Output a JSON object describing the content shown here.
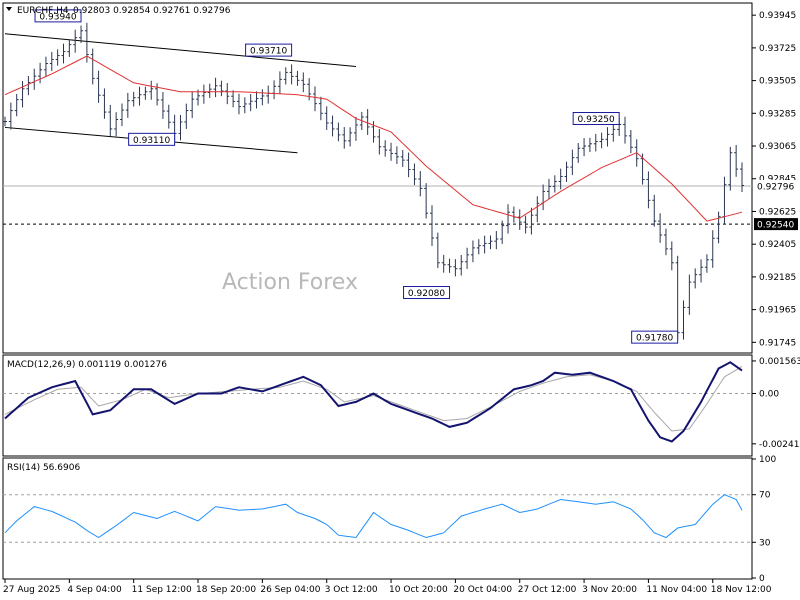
{
  "header": {
    "symbol": "EURCHF,H4",
    "ohlc": "0.92803 0.92854 0.92761 0.92796"
  },
  "watermark": "Action Forex",
  "colors": {
    "price": "#2a3550",
    "ma": "#e03030",
    "macd": "#141470",
    "signal": "#a8a8a8",
    "rsi": "#1e90ff",
    "trendline": "#000000",
    "label_border": "#1a1aa0"
  },
  "chart_data": [
    {
      "type": "line",
      "name": "price",
      "ylim": [
        0.9168,
        0.9402
      ],
      "y_ticks": [
        "0.93945",
        "0.93725",
        "0.93505",
        "0.93285",
        "0.93065",
        "0.92845",
        "0.92625",
        "0.92405",
        "0.92185",
        "0.91965",
        "0.91745"
      ],
      "y_tick_values": [
        0.93945,
        0.93725,
        0.93505,
        0.93285,
        0.93065,
        0.92845,
        0.92625,
        0.92405,
        0.92185,
        0.91965,
        0.91745
      ],
      "x_labels": [
        "27 Aug 2025",
        "4 Sep 04:00",
        "11 Sep 12:00",
        "18 Sep 20:00",
        "26 Sep 04:00",
        "3 Oct 12:00",
        "10 Oct 20:00",
        "20 Oct 04:00",
        "27 Oct 12:00",
        "3 Nov 20:00",
        "11 Nov 04:00",
        "18 Nov 12:00"
      ],
      "x_label_index": [
        0,
        11,
        22,
        33,
        44,
        55,
        66,
        77,
        88,
        99,
        110,
        121
      ],
      "x_count": 127,
      "close_anchors": [
        [
          0,
          0.9323
        ],
        [
          3,
          0.9345
        ],
        [
          7,
          0.9362
        ],
        [
          10,
          0.937
        ],
        [
          13,
          0.9384
        ],
        [
          15,
          0.9352
        ],
        [
          18,
          0.9318
        ],
        [
          21,
          0.9337
        ],
        [
          25,
          0.9345
        ],
        [
          29,
          0.9315
        ],
        [
          32,
          0.9338
        ],
        [
          36,
          0.9347
        ],
        [
          40,
          0.9333
        ],
        [
          45,
          0.9342
        ],
        [
          48,
          0.9356
        ],
        [
          51,
          0.9348
        ],
        [
          55,
          0.9322
        ],
        [
          58,
          0.931
        ],
        [
          61,
          0.9326
        ],
        [
          64,
          0.9306
        ],
        [
          68,
          0.9297
        ],
        [
          71,
          0.9278
        ],
        [
          74,
          0.9228
        ],
        [
          77,
          0.9224
        ],
        [
          80,
          0.9238
        ],
        [
          84,
          0.9244
        ],
        [
          86,
          0.9262
        ],
        [
          89,
          0.9252
        ],
        [
          92,
          0.9276
        ],
        [
          95,
          0.9286
        ],
        [
          98,
          0.9305
        ],
        [
          102,
          0.9311
        ],
        [
          105,
          0.9321
        ],
        [
          108,
          0.9298
        ],
        [
          111,
          0.9256
        ],
        [
          114,
          0.9228
        ],
        [
          115,
          0.9181
        ],
        [
          117,
          0.9215
        ],
        [
          120,
          0.923
        ],
        [
          122,
          0.9259
        ],
        [
          124,
          0.9302
        ],
        [
          126,
          0.928
        ]
      ],
      "ma_anchors": [
        [
          0,
          0.9341
        ],
        [
          8,
          0.9355
        ],
        [
          14,
          0.9367
        ],
        [
          22,
          0.9349
        ],
        [
          30,
          0.9343
        ],
        [
          40,
          0.9343
        ],
        [
          50,
          0.9341
        ],
        [
          55,
          0.9338
        ],
        [
          60,
          0.9325
        ],
        [
          66,
          0.9316
        ],
        [
          72,
          0.9293
        ],
        [
          80,
          0.9267
        ],
        [
          88,
          0.9258
        ],
        [
          95,
          0.9276
        ],
        [
          102,
          0.9292
        ],
        [
          108,
          0.9302
        ],
        [
          114,
          0.9281
        ],
        [
          120,
          0.9256
        ],
        [
          126,
          0.9262
        ]
      ],
      "last_price": 0.92796,
      "current_price_label": "0.92796",
      "level_label": "0.92540",
      "level_value": 0.9254,
      "annotations": [
        {
          "label": "0.93940",
          "index": 13,
          "value": 0.9394,
          "side": "left"
        },
        {
          "label": "0.93710",
          "index": 49,
          "value": 0.9371,
          "side": "left"
        },
        {
          "label": "0.93110",
          "index": 29,
          "value": 0.9311,
          "side": "left"
        },
        {
          "label": "0.93250",
          "index": 105,
          "value": 0.9325,
          "side": "left"
        },
        {
          "label": "0.92080",
          "index": 76,
          "value": 0.9208,
          "side": "left"
        },
        {
          "label": "0.91780",
          "index": 115,
          "value": 0.9178,
          "side": "left"
        }
      ],
      "trendlines": [
        {
          "from": [
            0,
            0.9382
          ],
          "to": [
            60,
            0.936
          ]
        },
        {
          "from": [
            0,
            0.9319
          ],
          "to": [
            50,
            0.9302
          ]
        }
      ]
    },
    {
      "type": "line",
      "name": "MACD",
      "label": "MACD(12,26,9) 0.001119 0.001276",
      "ylim": [
        -0.00295,
        0.0018
      ],
      "y_ticks": [
        "0.001563",
        "0.00",
        "-0.002413"
      ],
      "y_tick_values": [
        0.001563,
        0.0,
        -0.002413
      ],
      "macd_anchors": [
        [
          0,
          -0.0012
        ],
        [
          4,
          -0.0002
        ],
        [
          8,
          0.0003
        ],
        [
          12,
          0.0006
        ],
        [
          15,
          -0.001
        ],
        [
          18,
          -0.0008
        ],
        [
          22,
          0.0002
        ],
        [
          25,
          0.0002
        ],
        [
          29,
          -0.0005
        ],
        [
          33,
          0.0
        ],
        [
          37,
          0.0
        ],
        [
          40,
          0.0003
        ],
        [
          44,
          0.0001
        ],
        [
          48,
          0.0005
        ],
        [
          51,
          0.0008
        ],
        [
          54,
          0.0004
        ],
        [
          57,
          -0.0006
        ],
        [
          60,
          -0.0004
        ],
        [
          63,
          0.0
        ],
        [
          66,
          -0.0005
        ],
        [
          70,
          -0.0009
        ],
        [
          73,
          -0.0012
        ],
        [
          76,
          -0.0016
        ],
        [
          79,
          -0.0014
        ],
        [
          83,
          -0.0007
        ],
        [
          87,
          0.0002
        ],
        [
          90,
          0.0004
        ],
        [
          92,
          0.0006
        ],
        [
          94,
          0.001
        ],
        [
          97,
          0.0009
        ],
        [
          100,
          0.001
        ],
        [
          104,
          0.0006
        ],
        [
          107,
          0.0002
        ],
        [
          110,
          -0.0013
        ],
        [
          112,
          -0.0021
        ],
        [
          114,
          -0.0023
        ],
        [
          116,
          -0.0018
        ],
        [
          119,
          -0.0004
        ],
        [
          122,
          0.0012
        ],
        [
          124,
          0.0015
        ],
        [
          126,
          0.0011
        ]
      ],
      "signal_anchors": [
        [
          0,
          -0.001
        ],
        [
          5,
          -0.0003
        ],
        [
          9,
          0.0002
        ],
        [
          13,
          0.0003
        ],
        [
          16,
          -0.0006
        ],
        [
          20,
          -0.0003
        ],
        [
          24,
          0.0002
        ],
        [
          28,
          -0.0002
        ],
        [
          33,
          0.0
        ],
        [
          38,
          0.0001
        ],
        [
          42,
          0.0002
        ],
        [
          47,
          0.0003
        ],
        [
          51,
          0.0006
        ],
        [
          55,
          0.0002
        ],
        [
          58,
          -0.0004
        ],
        [
          63,
          -0.0001
        ],
        [
          67,
          -0.0005
        ],
        [
          71,
          -0.0009
        ],
        [
          75,
          -0.0013
        ],
        [
          79,
          -0.0012
        ],
        [
          84,
          -0.0005
        ],
        [
          88,
          0.0001
        ],
        [
          92,
          0.0005
        ],
        [
          96,
          0.0008
        ],
        [
          100,
          0.0009
        ],
        [
          104,
          0.0006
        ],
        [
          108,
          0.0001
        ],
        [
          111,
          -0.0009
        ],
        [
          114,
          -0.0018
        ],
        [
          117,
          -0.0017
        ],
        [
          120,
          -0.0005
        ],
        [
          123,
          0.0008
        ],
        [
          126,
          0.0013
        ]
      ]
    },
    {
      "type": "line",
      "name": "RSI",
      "label": "RSI(14) 56.6906",
      "ylim": [
        0,
        100
      ],
      "y_ticks": [
        "100",
        "70",
        "30",
        "0"
      ],
      "y_tick_values": [
        100,
        70,
        30,
        0
      ],
      "rsi_anchors": [
        [
          0,
          38
        ],
        [
          2,
          48
        ],
        [
          5,
          60
        ],
        [
          8,
          56
        ],
        [
          12,
          47
        ],
        [
          14,
          40
        ],
        [
          16,
          34
        ],
        [
          19,
          44
        ],
        [
          22,
          55
        ],
        [
          26,
          50
        ],
        [
          29,
          56
        ],
        [
          33,
          48
        ],
        [
          36,
          60
        ],
        [
          40,
          57
        ],
        [
          44,
          58
        ],
        [
          48,
          62
        ],
        [
          50,
          55
        ],
        [
          53,
          50
        ],
        [
          55,
          45
        ],
        [
          57,
          36
        ],
        [
          60,
          34
        ],
        [
          63,
          55
        ],
        [
          66,
          45
        ],
        [
          69,
          40
        ],
        [
          72,
          34
        ],
        [
          75,
          38
        ],
        [
          78,
          52
        ],
        [
          82,
          58
        ],
        [
          85,
          62
        ],
        [
          88,
          55
        ],
        [
          91,
          58
        ],
        [
          95,
          66
        ],
        [
          98,
          64
        ],
        [
          101,
          62
        ],
        [
          104,
          64
        ],
        [
          107,
          58
        ],
        [
          109,
          49
        ],
        [
          111,
          38
        ],
        [
          113,
          34
        ],
        [
          115,
          42
        ],
        [
          118,
          45
        ],
        [
          121,
          62
        ],
        [
          123,
          70
        ],
        [
          125,
          66
        ],
        [
          126,
          57
        ]
      ],
      "overbought": 70,
      "oversold": 30
    }
  ]
}
